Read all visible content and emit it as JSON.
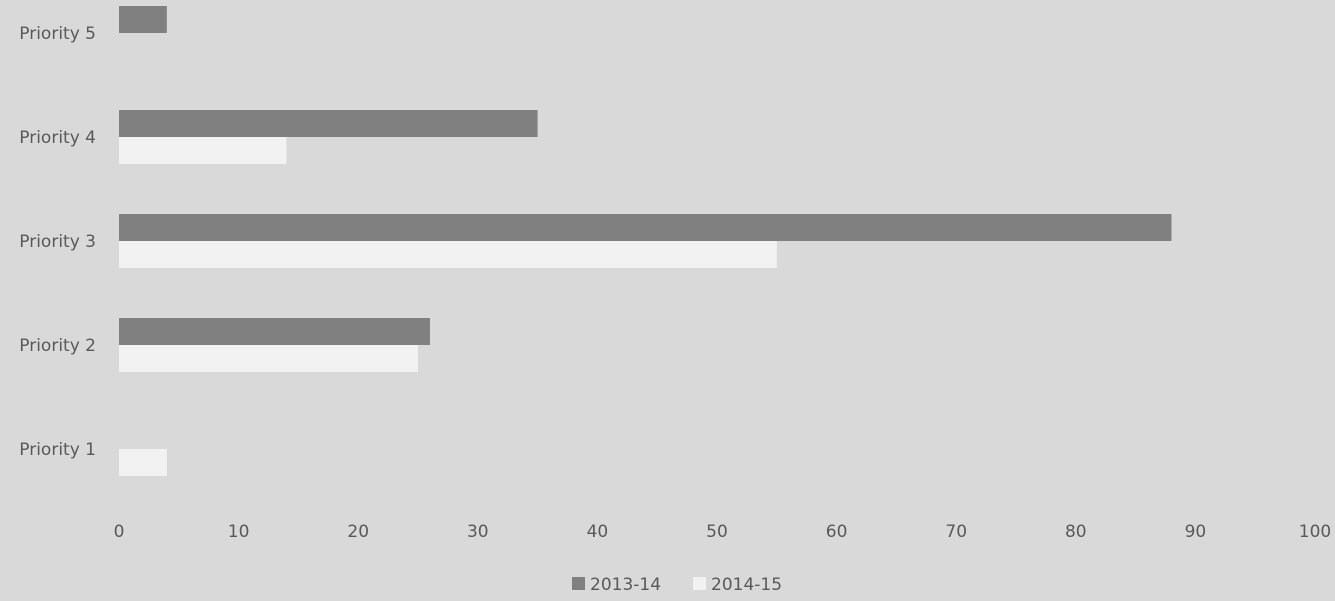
{
  "chart_data": {
    "type": "bar",
    "orientation": "horizontal",
    "categories": [
      "Priority 1",
      "Priority 2",
      "Priority 3",
      "Priority 4",
      "Priority 5"
    ],
    "series": [
      {
        "name": "2013-14",
        "color": "#808080",
        "values": [
          0,
          26,
          88,
          35,
          4
        ]
      },
      {
        "name": "2014-15",
        "color": "#f2f2f2",
        "values": [
          4,
          25,
          55,
          14,
          0
        ]
      }
    ],
    "xlim": [
      0,
      100
    ],
    "xticks": [
      "0",
      "10",
      "20",
      "30",
      "40",
      "50",
      "60",
      "70",
      "80",
      "90",
      "100"
    ],
    "grid": false,
    "legend": "bottom",
    "background": "#d9d9d9"
  }
}
